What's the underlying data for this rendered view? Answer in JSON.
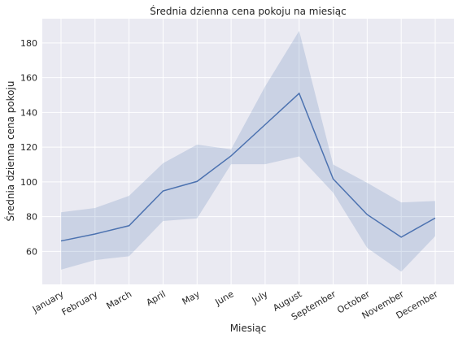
{
  "chart_data": {
    "type": "line",
    "title": "Średnia dzienna cena pokoju na miesiąc",
    "xlabel": "Miesiąc",
    "ylabel": "Średnia dzienna cena pokoju",
    "categories": [
      "January",
      "February",
      "March",
      "April",
      "May",
      "June",
      "July",
      "August",
      "September",
      "October",
      "November",
      "December"
    ],
    "series": [
      {
        "values": [
          66,
          70,
          74.8,
          94.8,
          100.3,
          115,
          133,
          151,
          101.7,
          81.2,
          68.2,
          79.2
        ],
        "ci_low": [
          49.5,
          55,
          57.2,
          77.5,
          79,
          110.2,
          110.2,
          114.7,
          93.8,
          62,
          48.3,
          68.8
        ],
        "ci_high": [
          82.5,
          85,
          92,
          110.8,
          121.5,
          118.8,
          155,
          187,
          110,
          99.5,
          88.2,
          89
        ]
      }
    ],
    "ylim": [
      41,
      194
    ],
    "yticks": [
      60,
      80,
      100,
      120,
      140,
      160,
      180
    ],
    "grid": true,
    "colors": {
      "line": "#4c72b0",
      "band": "#4c72b0",
      "background": "#eaeaf2",
      "grid": "#ffffff"
    }
  }
}
